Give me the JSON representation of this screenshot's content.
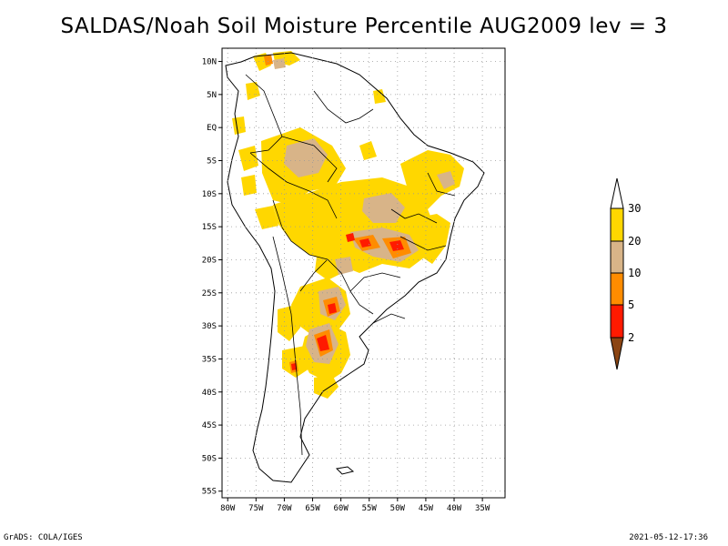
{
  "title": "SALDAS/Noah Soil Moisture Percentile AUG2009 lev = 3",
  "footer": {
    "left": "GrADS: COLA/IGES",
    "right": "2021-05-12-17:36"
  },
  "map": {
    "lat_ticks": [
      {
        "lat": 10,
        "label": "10N"
      },
      {
        "lat": 5,
        "label": "5N"
      },
      {
        "lat": 0,
        "label": "EQ"
      },
      {
        "lat": -5,
        "label": "5S"
      },
      {
        "lat": -10,
        "label": "10S"
      },
      {
        "lat": -15,
        "label": "15S"
      },
      {
        "lat": -20,
        "label": "20S"
      },
      {
        "lat": -25,
        "label": "25S"
      },
      {
        "lat": -30,
        "label": "30S"
      },
      {
        "lat": -35,
        "label": "35S"
      },
      {
        "lat": -40,
        "label": "40S"
      },
      {
        "lat": -45,
        "label": "45S"
      },
      {
        "lat": -50,
        "label": "50S"
      },
      {
        "lat": -55,
        "label": "55S"
      }
    ],
    "lon_ticks": [
      {
        "lon": -80,
        "label": "80W"
      },
      {
        "lon": -75,
        "label": "75W"
      },
      {
        "lon": -70,
        "label": "70W"
      },
      {
        "lon": -65,
        "label": "65W"
      },
      {
        "lon": -60,
        "label": "60W"
      },
      {
        "lon": -55,
        "label": "55W"
      },
      {
        "lon": -50,
        "label": "50W"
      },
      {
        "lon": -45,
        "label": "45W"
      },
      {
        "lon": -40,
        "label": "40W"
      },
      {
        "lon": -35,
        "label": "35W"
      }
    ],
    "lon_range": [
      -81,
      -31
    ],
    "lat_range": [
      -56,
      12
    ],
    "grid": "dotted"
  },
  "legend": {
    "colors": {
      "c30": "#ffd700",
      "c20": "#d8b488",
      "c10": "#ff8c00",
      "c5": "#ff1a00",
      "c2": "#8b4513"
    },
    "labels": {
      "l30": "30",
      "l20": "20",
      "l10": "10",
      "l5": "5",
      "l2": "2"
    }
  }
}
